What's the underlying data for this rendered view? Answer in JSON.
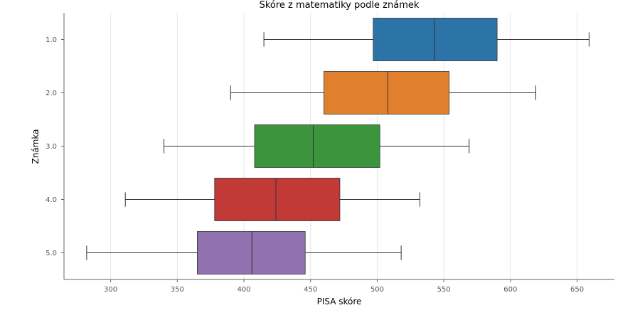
{
  "chart_data": {
    "type": "boxplot",
    "orientation": "horizontal",
    "title": "Skóre z matematiky podle známek",
    "xlabel": "PISA skóre",
    "ylabel": "Známka",
    "xlim": [
      265,
      678
    ],
    "xticks": [
      300,
      350,
      400,
      450,
      500,
      550,
      600,
      650
    ],
    "grid": "x",
    "categories": [
      "1.0",
      "2.0",
      "3.0",
      "4.0",
      "5.0"
    ],
    "boxes": [
      {
        "category": "1.0",
        "whisker_low": 415,
        "q1": 497,
        "median": 543,
        "q3": 590,
        "whisker_high": 659,
        "color": "#2c73a8"
      },
      {
        "category": "2.0",
        "whisker_low": 390,
        "q1": 460,
        "median": 508,
        "q3": 554,
        "whisker_high": 619,
        "color": "#e0802e"
      },
      {
        "category": "3.0",
        "whisker_low": 340,
        "q1": 408,
        "median": 452,
        "q3": 502,
        "whisker_high": 569,
        "color": "#3a953c"
      },
      {
        "category": "4.0",
        "whisker_low": 311,
        "q1": 378,
        "median": 424,
        "q3": 472,
        "whisker_high": 532,
        "color": "#c13a38"
      },
      {
        "category": "5.0",
        "whisker_low": 282,
        "q1": 365,
        "median": 406,
        "q3": 446,
        "whisker_high": 518,
        "color": "#9271b1"
      }
    ]
  }
}
